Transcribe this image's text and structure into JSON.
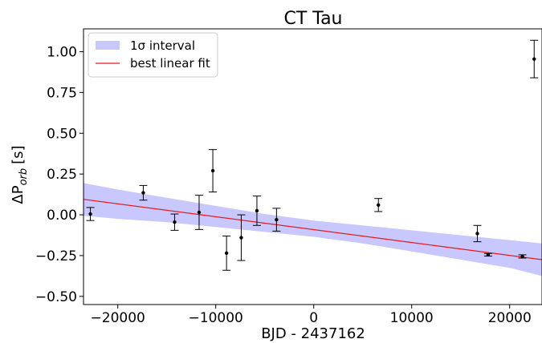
{
  "chart_data": {
    "type": "scatter",
    "title": "CT Tau",
    "xlabel": "BJD - 2437162",
    "ylabel_main": "ΔP",
    "ylabel_sub": "orb",
    "ylabel_unit": "[s]",
    "xlim": [
      -23500,
      23300
    ],
    "ylim": [
      -0.55,
      1.14
    ],
    "xticks": [
      -20000,
      -10000,
      0,
      10000,
      20000
    ],
    "xtick_labels": [
      "−20000",
      "−10000",
      "0",
      "10000",
      "20000"
    ],
    "yticks": [
      -0.5,
      -0.25,
      0.0,
      0.25,
      0.5,
      0.75,
      1.0
    ],
    "ytick_labels": [
      "−0.50",
      "−0.25",
      "0.00",
      "0.25",
      "0.50",
      "0.75",
      "1.00"
    ],
    "colors": {
      "band": "#c8c8ff",
      "fit": "#e41a1c",
      "points": "#000000"
    },
    "series": [
      {
        "name": "best linear fit",
        "kind": "line",
        "x": [
          -23500,
          23300
        ],
        "y": [
          0.095,
          -0.275
        ]
      },
      {
        "name": "1σ interval",
        "kind": "band",
        "x": [
          -23500,
          -20000,
          -15000,
          -10000,
          -5000,
          0,
          5000,
          10000,
          15000,
          20000,
          23300
        ],
        "upper": [
          0.195,
          0.155,
          0.105,
          0.055,
          0.005,
          -0.035,
          -0.065,
          -0.095,
          -0.125,
          -0.155,
          -0.175
        ],
        "lower": [
          -0.005,
          -0.025,
          -0.045,
          -0.075,
          -0.105,
          -0.135,
          -0.175,
          -0.225,
          -0.275,
          -0.325,
          -0.375
        ]
      },
      {
        "name": "data",
        "kind": "errorbar",
        "x": [
          -22800,
          -17400,
          -14200,
          -11700,
          -10300,
          -8900,
          -7400,
          -5800,
          -3800,
          6600,
          16700,
          17800,
          21300,
          22500
        ],
        "y": [
          0.005,
          0.135,
          -0.045,
          0.015,
          0.27,
          -0.235,
          -0.14,
          0.025,
          -0.03,
          0.06,
          -0.115,
          -0.245,
          -0.255,
          0.955
        ],
        "err": [
          0.04,
          0.045,
          0.05,
          0.105,
          0.13,
          0.105,
          0.14,
          0.09,
          0.07,
          0.04,
          0.05,
          0.008,
          0.01,
          0.115
        ]
      }
    ],
    "legend": {
      "position": "top-left",
      "entries": [
        {
          "label": "1σ interval",
          "kind": "band"
        },
        {
          "label": "best linear fit",
          "kind": "line"
        }
      ]
    }
  }
}
